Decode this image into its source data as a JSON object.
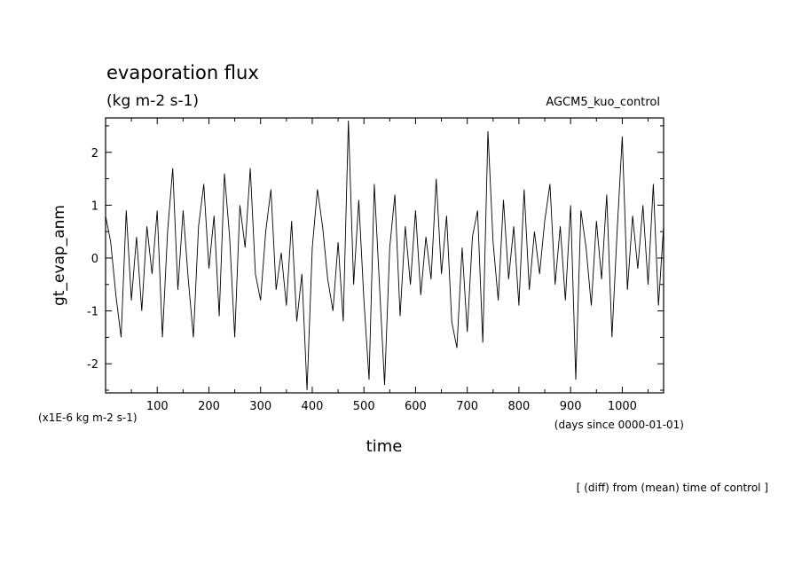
{
  "chart_data": {
    "type": "line",
    "title": "evaporation flux",
    "subtitle": "(kg m-2 s-1)",
    "experiment": "AGCM5_kuo_control",
    "xlabel": "time",
    "x_units": "(days since 0000-01-01)",
    "ylabel": "gt_evap_anm",
    "y_units": "(x1E-6 kg m-2 s-1)",
    "footnote": "[ (diff) from (mean) time of control ]",
    "xlim": [
      0,
      1080
    ],
    "ylim": [
      -2.55,
      2.65
    ],
    "x_ticks": [
      100,
      200,
      300,
      400,
      500,
      600,
      700,
      800,
      900,
      1000
    ],
    "x_tick_labels": [
      "100",
      "200",
      "300",
      "400",
      "500",
      "600",
      "700",
      "800",
      "900",
      "1000"
    ],
    "y_ticks": [
      -2,
      -1,
      0,
      1,
      2
    ],
    "y_tick_labels": [
      "-2",
      "-1",
      "0",
      "1",
      "2"
    ],
    "grid": false,
    "legend": "none",
    "line_color": "#000000",
    "series": [
      {
        "x": [
          0,
          10,
          20,
          30,
          40,
          50,
          60,
          70,
          80,
          90,
          100,
          110,
          120,
          130,
          140,
          150,
          160,
          170,
          180,
          190,
          200,
          210,
          220,
          230,
          240,
          250,
          260,
          270,
          280,
          290,
          300,
          310,
          320,
          330,
          340,
          350,
          360,
          370,
          380,
          390,
          400,
          410,
          420,
          430,
          440,
          450,
          460,
          470,
          480,
          490,
          500,
          510,
          520,
          530,
          540,
          550,
          560,
          570,
          580,
          590,
          600,
          610,
          620,
          630,
          640,
          650,
          660,
          670,
          680,
          690,
          700,
          710,
          720,
          730,
          740,
          750,
          760,
          770,
          780,
          790,
          800,
          810,
          820,
          830,
          840,
          850,
          860,
          870,
          880,
          890,
          900,
          910,
          920,
          930,
          940,
          950,
          960,
          970,
          980,
          990,
          1000,
          1010,
          1020,
          1030,
          1040,
          1050,
          1060,
          1070,
          1080
        ],
        "y": [
          0.8,
          0.3,
          -0.7,
          -1.5,
          0.9,
          -0.8,
          0.4,
          -1.0,
          0.6,
          -0.3,
          0.9,
          -1.5,
          0.5,
          1.7,
          -0.6,
          0.9,
          -0.4,
          -1.5,
          0.6,
          1.4,
          -0.2,
          0.8,
          -1.1,
          1.6,
          0.4,
          -1.5,
          1.0,
          0.2,
          1.7,
          -0.3,
          -0.8,
          0.5,
          1.3,
          -0.6,
          0.1,
          -0.9,
          0.7,
          -1.2,
          -0.3,
          -2.5,
          0.2,
          1.3,
          0.6,
          -0.4,
          -1.0,
          0.3,
          -1.2,
          2.6,
          -0.5,
          1.1,
          -0.8,
          -2.3,
          1.4,
          -0.5,
          -2.4,
          0.2,
          1.2,
          -1.1,
          0.6,
          -0.5,
          0.9,
          -0.7,
          0.4,
          -0.4,
          1.5,
          -0.3,
          0.8,
          -1.2,
          -1.7,
          0.2,
          -1.4,
          0.4,
          0.9,
          -1.6,
          2.4,
          0.3,
          -0.8,
          1.1,
          -0.4,
          0.6,
          -0.9,
          1.3,
          -0.6,
          0.5,
          -0.3,
          0.7,
          1.4,
          -0.5,
          0.6,
          -0.8,
          1.0,
          -2.3,
          0.9,
          0.2,
          -0.9,
          0.7,
          -0.4,
          1.2,
          -1.5,
          0.5,
          2.3,
          -0.6,
          0.8,
          -0.2,
          1.0,
          -0.5,
          1.4,
          -0.9,
          0.6
        ]
      }
    ]
  }
}
